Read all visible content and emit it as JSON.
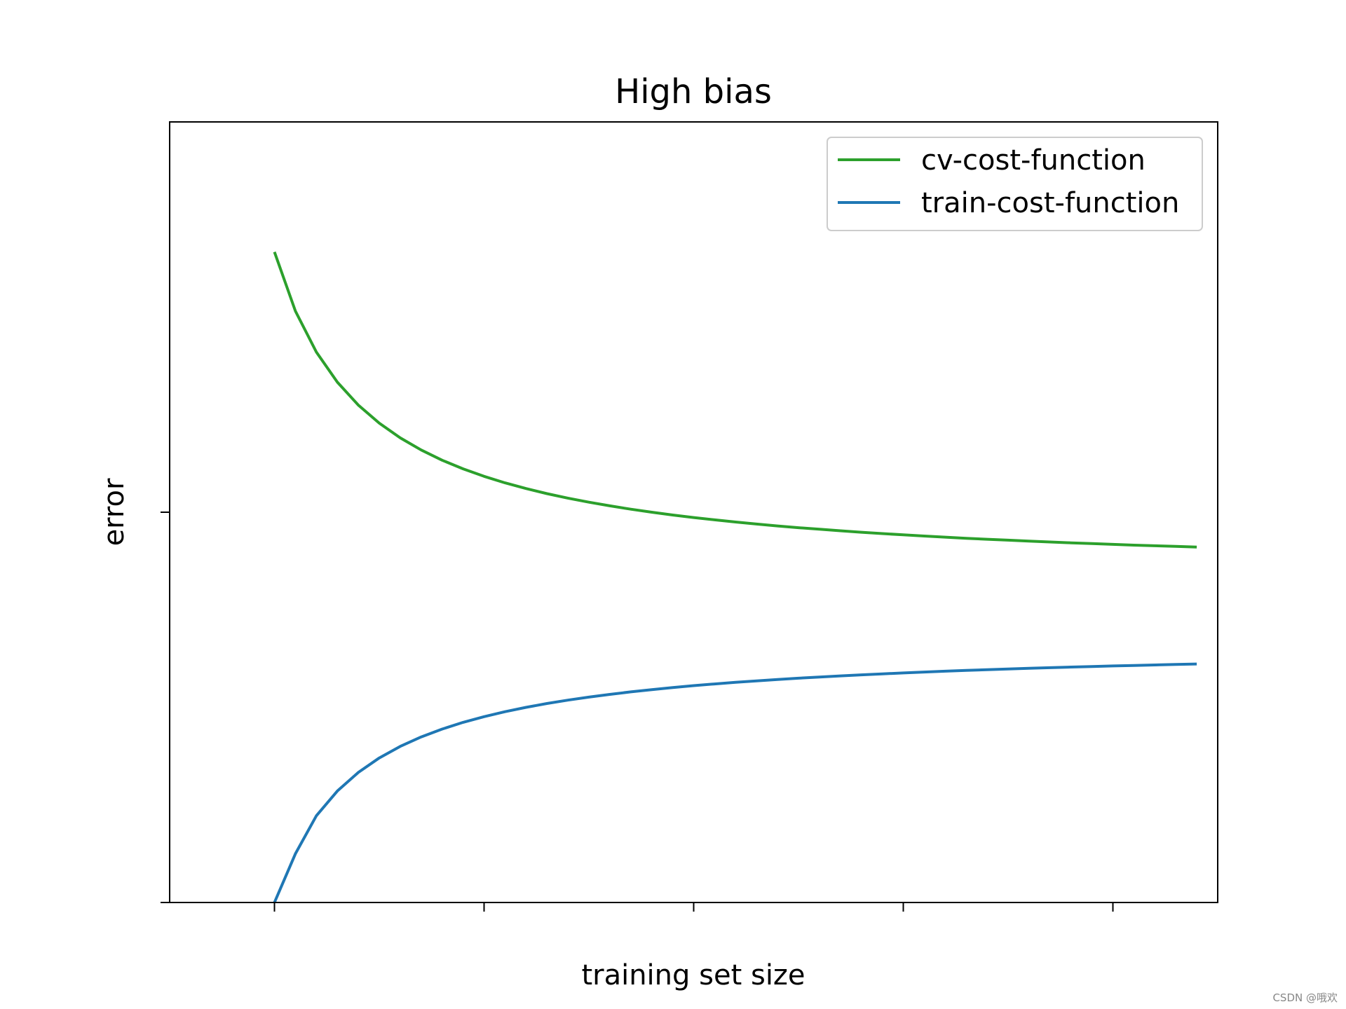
{
  "chart_data": {
    "type": "line",
    "title": "High bias",
    "xlabel": "training set size",
    "ylabel": "error",
    "x": [
      1,
      2,
      3,
      4,
      5,
      6,
      7,
      8,
      9,
      10,
      11,
      12,
      13,
      14,
      15,
      16,
      17,
      18,
      19,
      20,
      21,
      22,
      23,
      24,
      25,
      26,
      27,
      28,
      29,
      30,
      31,
      32,
      33,
      34,
      35,
      36,
      37,
      38,
      39,
      40,
      41,
      42,
      43,
      44,
      45
    ],
    "xlim": [
      -4,
      46
    ],
    "ylim": [
      0,
      2
    ],
    "x_ticks": [
      1,
      11,
      21,
      31,
      41
    ],
    "y_ticks": [
      0,
      1
    ],
    "grid": false,
    "legend_position": "top-right",
    "series": [
      {
        "name": "cv-cost-function",
        "color": "#2ca02c",
        "values": [
          1.6667,
          1.5152,
          1.4103,
          1.3333,
          1.2745,
          1.2281,
          1.1905,
          1.1594,
          1.1333,
          1.1111,
          1.092,
          1.0753,
          1.0606,
          1.0476,
          1.036,
          1.0256,
          1.0163,
          1.0078,
          1.0,
          0.9929,
          0.9864,
          0.9804,
          0.9748,
          0.9697,
          0.9649,
          0.9604,
          0.9563,
          0.9524,
          0.9487,
          0.9453,
          0.942,
          0.939,
          0.9361,
          0.9333,
          0.9307,
          0.9283,
          0.9259,
          0.9237,
          0.9216,
          0.9195,
          0.9176,
          0.9157,
          0.914,
          0.9123,
          0.9107
        ]
      },
      {
        "name": "train-cost-function",
        "color": "#1f77b4",
        "values": [
          0.0,
          0.125,
          0.2222,
          0.2857,
          0.3333,
          0.3704,
          0.4,
          0.4242,
          0.4444,
          0.4615,
          0.4762,
          0.4889,
          0.5,
          0.5098,
          0.5185,
          0.5263,
          0.5333,
          0.5397,
          0.5455,
          0.5507,
          0.5556,
          0.56,
          0.5641,
          0.5679,
          0.5714,
          0.5747,
          0.5778,
          0.5806,
          0.5833,
          0.5859,
          0.5882,
          0.5905,
          0.5926,
          0.5946,
          0.5965,
          0.5983,
          0.6,
          0.6016,
          0.6032,
          0.6047,
          0.6061,
          0.6074,
          0.6087,
          0.6099,
          0.6111
        ]
      }
    ]
  },
  "watermark": "CSDN @哦欢"
}
